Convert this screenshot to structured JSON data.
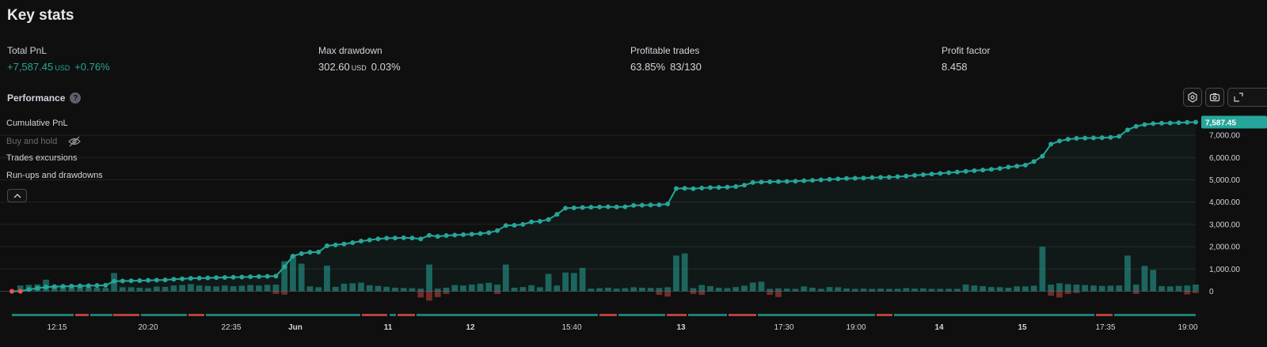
{
  "header": {
    "title": "Key stats"
  },
  "stats": [
    {
      "label": "Total PnL",
      "value": "+7,587.45",
      "unit": "USD",
      "extra": "+0.76%",
      "positive": true
    },
    {
      "label": "Max drawdown",
      "value": "302.60",
      "unit": "USD",
      "extra": "0.03%",
      "positive": false
    },
    {
      "label": "Profitable trades",
      "value": "63.85%",
      "unit": "",
      "extra": "83/130",
      "positive": false
    },
    {
      "label": "Profit factor",
      "value": "8.458",
      "unit": "",
      "extra": "",
      "positive": false
    }
  ],
  "performance": {
    "title": "Performance",
    "help_icon": "question-circle-icon",
    "tools": [
      "settings-icon",
      "camera-icon",
      "expand-icon"
    ]
  },
  "legend": {
    "cumulative": "Cumulative PnL",
    "buy_and_hold": "Buy and hold",
    "buy_and_hold_icon": "eye-off-icon",
    "excursions": "Trades excursions",
    "runups": "Run-ups and drawdowns",
    "collapse_icon": "chevron-up-icon"
  },
  "colors": {
    "green": "#26a69a",
    "red": "#ef5350",
    "background": "#0f0f0f"
  },
  "chart_data": {
    "type": "line",
    "last_value_label": "7,587.45",
    "y_ticks": [
      "7,000.00",
      "6,000.00",
      "5,000.00",
      "4,000.00",
      "3,000.00",
      "2,000.00",
      "1,000.00",
      "0"
    ],
    "y_tick_values": [
      7000,
      6000,
      5000,
      4000,
      3000,
      2000,
      1000,
      0
    ],
    "ylim": [
      -400,
      7900
    ],
    "x_ticks": [
      {
        "label": "12:15",
        "bold": false
      },
      {
        "label": "20:20",
        "bold": false
      },
      {
        "label": "22:35",
        "bold": false
      },
      {
        "label": "Jun",
        "bold": true
      },
      {
        "label": "11",
        "bold": true
      },
      {
        "label": "12",
        "bold": true
      },
      {
        "label": "15:40",
        "bold": false
      },
      {
        "label": "13",
        "bold": true
      },
      {
        "label": "17:30",
        "bold": false
      },
      {
        "label": "19:00",
        "bold": false
      },
      {
        "label": "14",
        "bold": true
      },
      {
        "label": "15",
        "bold": true
      },
      {
        "label": "17:35",
        "bold": false
      },
      {
        "label": "19:00",
        "bold": false
      }
    ],
    "series": [
      {
        "name": "Cumulative PnL",
        "values": [
          0,
          0,
          80,
          140,
          190,
          210,
          220,
          230,
          240,
          250,
          260,
          270,
          450,
          460,
          470,
          480,
          490,
          500,
          510,
          540,
          560,
          580,
          590,
          600,
          610,
          620,
          630,
          640,
          650,
          660,
          670,
          680,
          1100,
          1580,
          1690,
          1750,
          1760,
          2040,
          2080,
          2120,
          2180,
          2250,
          2300,
          2350,
          2380,
          2390,
          2400,
          2390,
          2350,
          2510,
          2460,
          2500,
          2520,
          2540,
          2560,
          2590,
          2630,
          2720,
          2950,
          2960,
          3000,
          3110,
          3140,
          3220,
          3450,
          3730,
          3740,
          3760,
          3770,
          3780,
          3790,
          3780,
          3790,
          3850,
          3860,
          3870,
          3880,
          3920,
          4610,
          4620,
          4600,
          4630,
          4650,
          4660,
          4670,
          4700,
          4760,
          4880,
          4900,
          4910,
          4920,
          4930,
          4940,
          4960,
          4980,
          5000,
          5020,
          5040,
          5060,
          5070,
          5080,
          5100,
          5110,
          5120,
          5140,
          5170,
          5200,
          5230,
          5260,
          5290,
          5320,
          5350,
          5380,
          5410,
          5440,
          5470,
          5510,
          5570,
          5610,
          5660,
          5820,
          6060,
          6600,
          6740,
          6820,
          6860,
          6870,
          6880,
          6890,
          6900,
          6950,
          7240,
          7400,
          7480,
          7520,
          7540,
          7550,
          7560,
          7580,
          7587.45
        ]
      }
    ],
    "runup_values": [
      0,
      260,
      290,
      310,
      520,
      270,
      200,
      230,
      240,
      180,
      160,
      150,
      820,
      180,
      180,
      160,
      140,
      210,
      200,
      260,
      280,
      320,
      260,
      240,
      220,
      260,
      230,
      250,
      280,
      260,
      290,
      300,
      1350,
      1580,
      1240,
      220,
      180,
      1150,
      200,
      340,
      360,
      390,
      270,
      240,
      200,
      160,
      150,
      140,
      120,
      1200,
      120,
      160,
      280,
      260,
      300,
      340,
      380,
      300,
      1200,
      160,
      190,
      270,
      180,
      780,
      260,
      840,
      820,
      1050,
      120,
      140,
      160,
      120,
      140,
      180,
      160,
      150,
      150,
      180,
      1600,
      1700,
      140,
      280,
      230,
      160,
      140,
      190,
      250,
      390,
      430,
      110,
      130,
      120,
      110,
      220,
      160,
      110,
      190,
      180,
      130,
      110,
      120,
      110,
      120,
      110,
      110,
      140,
      120,
      130,
      110,
      110,
      110,
      110,
      300,
      260,
      230,
      190,
      180,
      160,
      220,
      220,
      250,
      2000,
      300,
      360,
      320,
      300,
      280,
      260,
      240,
      250,
      260,
      1600,
      300,
      1140,
      960,
      230,
      220,
      240,
      260,
      300
    ],
    "drawdown_values": [
      0,
      0,
      0,
      0,
      0,
      0,
      0,
      0,
      0,
      0,
      0,
      0,
      0,
      0,
      0,
      0,
      0,
      0,
      0,
      0,
      0,
      0,
      0,
      0,
      0,
      0,
      0,
      0,
      0,
      0,
      0,
      -120,
      -150,
      0,
      0,
      0,
      0,
      0,
      0,
      0,
      0,
      0,
      0,
      0,
      0,
      0,
      0,
      0,
      -280,
      -420,
      -260,
      -120,
      0,
      0,
      0,
      0,
      0,
      -120,
      0,
      0,
      0,
      0,
      0,
      0,
      0,
      0,
      0,
      0,
      0,
      0,
      0,
      0,
      0,
      0,
      0,
      0,
      -160,
      -240,
      0,
      0,
      -120,
      -160,
      0,
      0,
      0,
      0,
      0,
      0,
      0,
      -160,
      -260,
      0,
      0,
      0,
      0,
      0,
      0,
      0,
      0,
      0,
      0,
      0,
      0,
      0,
      0,
      0,
      0,
      0,
      0,
      0,
      0,
      0,
      0,
      0,
      0,
      0,
      0,
      0,
      0,
      0,
      0,
      0,
      -200,
      -280,
      -120,
      -80,
      0,
      0,
      0,
      0,
      0,
      0,
      -120,
      0,
      0,
      0,
      0,
      0,
      -140,
      -80
    ]
  }
}
